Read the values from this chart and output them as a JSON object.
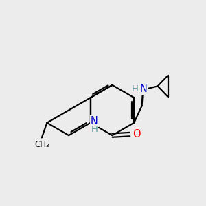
{
  "background_color": "#ececec",
  "bond_color": "#000000",
  "atom_colors": {
    "N": "#0000cc",
    "O": "#ff0000",
    "C": "#000000",
    "H": "#5f9ea0"
  },
  "bond_lw": 1.6,
  "font_size_atom": 10.5,
  "figsize": [
    3.0,
    3.0
  ],
  "dpi": 100
}
